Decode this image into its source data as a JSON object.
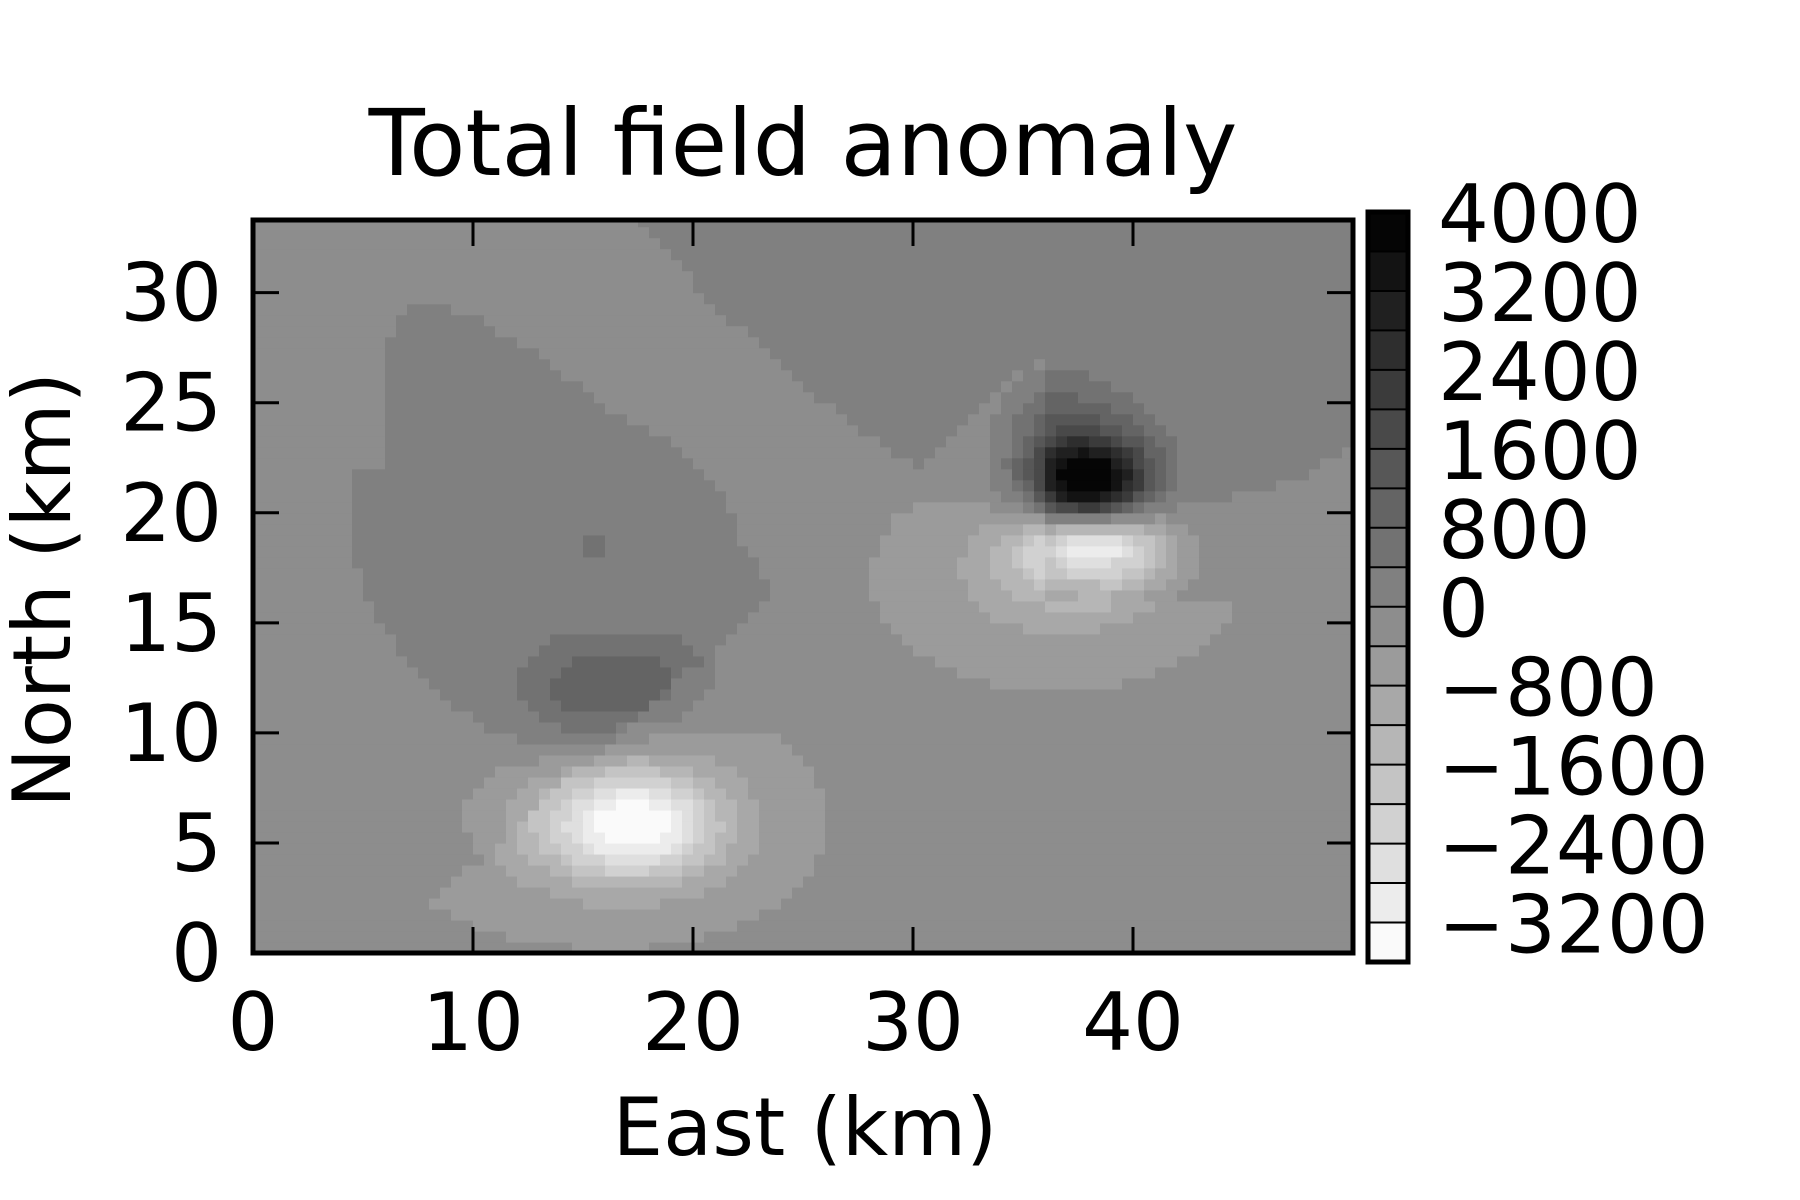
{
  "chart_data": {
    "type": "contour",
    "title": "Total field anomaly",
    "xlabel": "East (km)",
    "ylabel": "North (km)",
    "xlim": [
      0,
      50
    ],
    "ylim": [
      0,
      33.3
    ],
    "xticks": [
      0,
      10,
      20,
      30,
      40
    ],
    "xtick_labels": [
      "0",
      "10",
      "20",
      "30",
      "40"
    ],
    "yticks": [
      0,
      5,
      10,
      15,
      20,
      25,
      30
    ],
    "ytick_labels": [
      "0",
      "5",
      "10",
      "15",
      "20",
      "25",
      "30"
    ],
    "colormap": "gray_r",
    "grid": false,
    "colorbar": {
      "levels": [
        -3600,
        -3200,
        -2800,
        -2400,
        -2000,
        -1600,
        -1200,
        -800,
        -400,
        0,
        400,
        800,
        1200,
        1600,
        2000,
        2400,
        2800,
        3200,
        3600,
        4000
      ],
      "tick_values": [
        4000,
        3200,
        2400,
        1600,
        800,
        0,
        -800,
        -1600,
        -2400,
        -3200
      ],
      "tick_labels": [
        "4000",
        "3200",
        "2400",
        "1600",
        "800",
        "0",
        "−800",
        "−1600",
        "−2400",
        "−3200"
      ],
      "min": -3600,
      "max": 4000
    },
    "background_value": 0,
    "anomaly_sources": [
      {
        "east": 38,
        "north": 21.2,
        "value": 4000,
        "sigma_east": 1.8,
        "sigma_north": 1.4
      },
      {
        "east": 37.8,
        "north": 22.5,
        "value": 1000,
        "sigma_east": 2.6,
        "sigma_north": 2.3
      },
      {
        "east": 38.3,
        "north": 18.6,
        "value": -3200,
        "sigma_east": 2.2,
        "sigma_north": 1.3
      },
      {
        "east": 36.5,
        "north": 17.2,
        "value": -900,
        "sigma_east": 3.5,
        "sigma_north": 2.2
      },
      {
        "east": 15,
        "north": 11.8,
        "value": 1000,
        "sigma_east": 2.3,
        "sigma_north": 1.9
      },
      {
        "east": 18.5,
        "north": 12.5,
        "value": 650,
        "sigma_east": 2.1,
        "sigma_north": 1.6
      },
      {
        "east": 17.5,
        "north": 5.8,
        "value": -2500,
        "sigma_east": 2.6,
        "sigma_north": 1.7
      },
      {
        "east": 15.5,
        "north": 6.2,
        "value": -1000,
        "sigma_east": 4.2,
        "sigma_north": 2.4
      },
      {
        "east": 15.5,
        "north": 18.5,
        "value": 450,
        "sigma_east": 1.6,
        "sigma_north": 0.9
      },
      {
        "east": 36,
        "north": 24.5,
        "value": 450,
        "sigma_east": 1.5,
        "sigma_north": 1.8
      }
    ],
    "regional_zones": [
      {
        "value": -350,
        "description": "lighter band lower-left and right side"
      },
      {
        "value": 350,
        "description": "darker diagonal band"
      }
    ]
  }
}
